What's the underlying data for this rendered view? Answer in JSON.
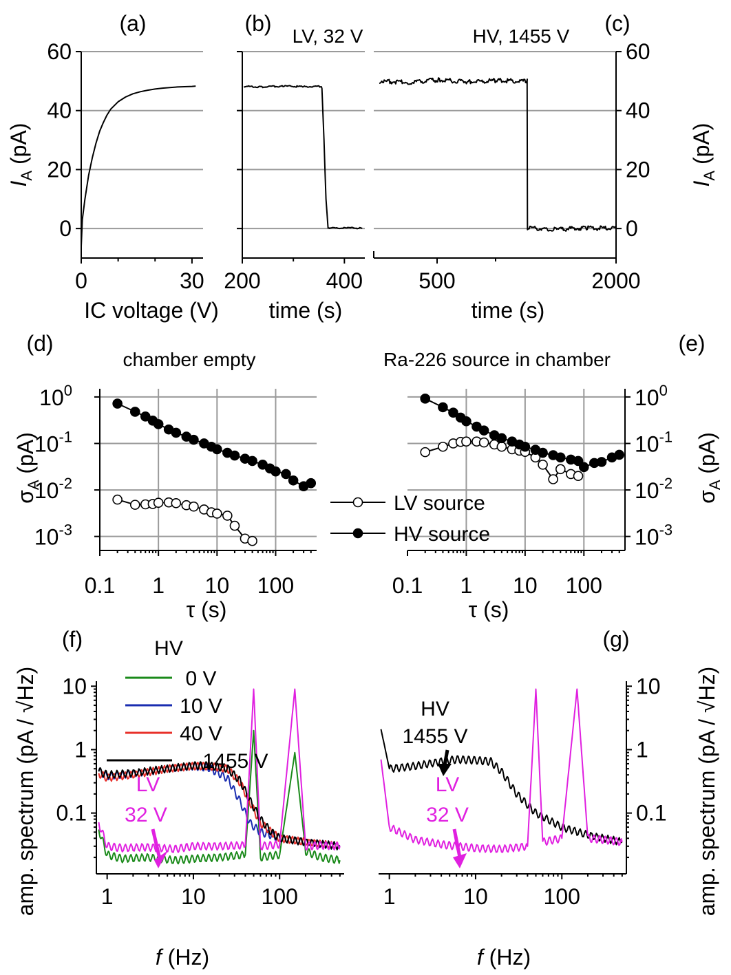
{
  "panels": [
    {
      "id": "a",
      "letter": "(a)",
      "annotation": "",
      "type": "line",
      "xlabel": "IC voltage (V)",
      "ylabel_main": "I",
      "ylabel_sub": "A",
      "ylabel_rest": " (pA)",
      "xticks": [
        "0",
        "30"
      ],
      "yticks": [
        "60",
        "40",
        "20",
        "0"
      ],
      "xlim": [
        0,
        33
      ],
      "ylim": [
        -10,
        60
      ],
      "series": [
        {
          "color": "#000000",
          "x": [
            0,
            0.3,
            1,
            2,
            3,
            4,
            5,
            6,
            7,
            8,
            10,
            12,
            14,
            16,
            18,
            20,
            22,
            24,
            26,
            28,
            30,
            31
          ],
          "y": [
            -6,
            3,
            10,
            18,
            24,
            29,
            33,
            36,
            38.5,
            40.5,
            43,
            44.6,
            45.7,
            46.4,
            46.9,
            47.3,
            47.6,
            47.8,
            48.0,
            48.1,
            48.2,
            48.3
          ]
        }
      ]
    },
    {
      "id": "b",
      "letter": "(b)",
      "annotation": "LV, 32 V",
      "type": "line",
      "xlabel": "time (s)",
      "xticks": [
        "200",
        "400"
      ],
      "yticks": [],
      "xlim": [
        200,
        440
      ],
      "ylim": [
        -10,
        60
      ],
      "series": [
        {
          "color": "#000000",
          "x": [
            203,
            240,
            280,
            320,
            355,
            356,
            360,
            364,
            368,
            380,
            410,
            435
          ],
          "y": [
            48.2,
            48.0,
            48.3,
            48.1,
            48.2,
            47.5,
            30,
            10,
            0.3,
            0.1,
            0.2,
            0.1
          ]
        }
      ]
    },
    {
      "id": "c",
      "letter": "(c)",
      "annotation": "HV, 1455 V",
      "type": "line",
      "xlabel": "time (s)",
      "ylabel_main": "I",
      "ylabel_sub": "A",
      "ylabel_rest": " (pA)",
      "xticks": [
        "500",
        "2000"
      ],
      "yticks": [
        "60",
        "40",
        "20",
        "0"
      ],
      "xlim": [
        0,
        2000
      ],
      "ylim": [
        -10,
        60
      ],
      "series": [
        {
          "color": "#000000",
          "x": [
            0,
            250,
            500,
            750,
            1000,
            1250,
            1249,
            1252,
            1500,
            1750,
            2000
          ],
          "y": [
            50,
            49.6,
            50.4,
            49.8,
            50.2,
            49.9,
            49.9,
            0.3,
            -0.3,
            0.2,
            0.0
          ]
        }
      ]
    },
    {
      "id": "d",
      "letter": "(d)",
      "annotation": "chamber empty",
      "type": "scatter",
      "xlabel": "τ (s)",
      "ylabel_main": "σ",
      "ylabel_sub": "A",
      "ylabel_rest": " (pA)",
      "xticks": [
        "0.1",
        "1",
        "10",
        "100"
      ],
      "yticks": [
        {
          "base": "10",
          "exp": "0"
        },
        {
          "base": "10",
          "exp": "-1"
        },
        {
          "base": "10",
          "exp": "-2"
        },
        {
          "base": "10",
          "exp": "-3"
        }
      ],
      "xlim": [
        0.1,
        500
      ],
      "ylim": [
        0.0005,
        1.5
      ],
      "xscale": "log",
      "yscale": "log",
      "series": [
        {
          "name": "LV source",
          "marker": "open",
          "x": [
            0.2,
            0.4,
            0.6,
            0.8,
            1,
            1.5,
            2,
            3,
            4,
            6,
            8,
            10,
            15,
            20,
            30,
            40
          ],
          "y": [
            0.0062,
            0.0048,
            0.0049,
            0.005,
            0.0053,
            0.0054,
            0.0052,
            0.0047,
            0.0044,
            0.0038,
            0.0033,
            0.0031,
            0.0028,
            0.0017,
            0.0009,
            0.0008
          ]
        },
        {
          "name": "HV source",
          "marker": "filled",
          "x": [
            0.2,
            0.4,
            0.6,
            0.8,
            1,
            1.5,
            2,
            3,
            4,
            6,
            8,
            10,
            15,
            20,
            30,
            40,
            60,
            80,
            100,
            150,
            200,
            300,
            400
          ],
          "y": [
            0.72,
            0.48,
            0.38,
            0.31,
            0.26,
            0.2,
            0.17,
            0.14,
            0.12,
            0.1,
            0.085,
            0.075,
            0.063,
            0.055,
            0.047,
            0.042,
            0.035,
            0.029,
            0.025,
            0.022,
            0.016,
            0.012,
            0.014
          ]
        }
      ]
    },
    {
      "id": "e",
      "letter": "(e)",
      "annotation": "Ra-226 source in chamber",
      "type": "scatter",
      "xlabel": "τ (s)",
      "ylabel_main": "σ",
      "ylabel_sub": "A",
      "ylabel_rest": " (pA)",
      "xticks": [
        "0.1",
        "1",
        "10",
        "100"
      ],
      "yticks": [
        {
          "base": "10",
          "exp": "0"
        },
        {
          "base": "10",
          "exp": "-1"
        },
        {
          "base": "10",
          "exp": "-2"
        },
        {
          "base": "10",
          "exp": "-3"
        }
      ],
      "xlim": [
        0.1,
        500
      ],
      "ylim": [
        0.0005,
        1.5
      ],
      "xscale": "log",
      "yscale": "log",
      "series": [
        {
          "name": "LV source",
          "marker": "open",
          "x": [
            0.2,
            0.4,
            0.6,
            0.8,
            1,
            1.5,
            2,
            3,
            4,
            6,
            8,
            10,
            15,
            20,
            30,
            40,
            60,
            80
          ],
          "y": [
            0.065,
            0.085,
            0.1,
            0.108,
            0.11,
            0.11,
            0.105,
            0.095,
            0.085,
            0.075,
            0.07,
            0.066,
            0.05,
            0.035,
            0.017,
            0.028,
            0.022,
            0.02
          ]
        },
        {
          "name": "HV source",
          "marker": "filled",
          "x": [
            0.2,
            0.4,
            0.6,
            0.8,
            1,
            1.5,
            2,
            3,
            4,
            6,
            8,
            10,
            15,
            20,
            30,
            40,
            60,
            80,
            100,
            150,
            200,
            300,
            400
          ],
          "y": [
            0.92,
            0.6,
            0.46,
            0.36,
            0.3,
            0.23,
            0.19,
            0.15,
            0.13,
            0.11,
            0.095,
            0.085,
            0.073,
            0.063,
            0.056,
            0.05,
            0.045,
            0.042,
            0.031,
            0.038,
            0.04,
            0.05,
            0.057
          ]
        }
      ]
    },
    {
      "id": "f",
      "letter": "(f)",
      "annotation": "",
      "type": "line",
      "xlabel_main": "f",
      "xlabel_rest": " (Hz)",
      "ylabel_main": "amp. spectrum (pA / √Hz)",
      "xticks": [
        "1",
        "10",
        "100"
      ],
      "yticks": [
        "10",
        "1",
        "0.1"
      ],
      "xlim": [
        0.75,
        560
      ],
      "ylim": [
        0.011,
        12
      ],
      "xscale": "log",
      "yscale": "log",
      "series": [
        {
          "name": "0 V",
          "color": "#1a8a1a",
          "x": [
            0.8,
            1,
            1.5,
            3,
            6,
            10,
            20,
            40,
            50,
            60,
            100,
            150,
            200,
            300,
            500
          ],
          "y": [
            0.055,
            0.022,
            0.019,
            0.02,
            0.018,
            0.019,
            0.02,
            0.022,
            2,
            0.02,
            0.022,
            0.9,
            0.025,
            0.02,
            0.018
          ]
        },
        {
          "name": "10 V",
          "color": "#1a2db0",
          "x": [
            0.8,
            1,
            2,
            5,
            10,
            15,
            25,
            35,
            45,
            60,
            80,
            100,
            200,
            500
          ],
          "y": [
            0.46,
            0.38,
            0.42,
            0.5,
            0.55,
            0.52,
            0.35,
            0.15,
            0.07,
            0.05,
            0.045,
            0.04,
            0.035,
            0.03
          ]
        },
        {
          "name": "40 V",
          "color": "#e8302a",
          "x": [
            0.8,
            1,
            2,
            5,
            10,
            15,
            25,
            35,
            45,
            60,
            80,
            100,
            200,
            500
          ],
          "y": [
            0.42,
            0.36,
            0.4,
            0.5,
            0.55,
            0.55,
            0.5,
            0.3,
            0.15,
            0.07,
            0.05,
            0.04,
            0.035,
            0.03
          ]
        },
        {
          "name": "1455 V",
          "color": "#000000",
          "x": [
            0.8,
            1,
            2,
            5,
            10,
            15,
            25,
            35,
            45,
            60,
            80,
            100,
            200,
            500
          ],
          "y": [
            0.46,
            0.4,
            0.43,
            0.5,
            0.56,
            0.56,
            0.5,
            0.32,
            0.16,
            0.08,
            0.05,
            0.04,
            0.035,
            0.03
          ]
        },
        {
          "name": "32 V",
          "color": "#e020e0",
          "x": [
            0.8,
            1,
            1.5,
            3,
            6,
            10,
            20,
            40,
            50,
            60,
            100,
            150,
            200,
            300,
            500
          ],
          "y": [
            0.07,
            0.03,
            0.028,
            0.029,
            0.027,
            0.03,
            0.03,
            0.031,
            9,
            0.03,
            0.032,
            9,
            0.03,
            0.031,
            0.03
          ]
        }
      ],
      "legend_title": "HV",
      "lv_label": [
        "LV",
        "32 V"
      ]
    },
    {
      "id": "g",
      "letter": "(g)",
      "annotation": "",
      "type": "line",
      "xlabel_main": "f",
      "xlabel_rest": " (Hz)",
      "ylabel_main": "amp. spectrum (pA / √Hz)",
      "xticks": [
        "1",
        "10",
        "100"
      ],
      "yticks": [
        "10",
        "1",
        "0.1"
      ],
      "xlim": [
        0.75,
        560
      ],
      "ylim": [
        0.011,
        12
      ],
      "xscale": "log",
      "yscale": "log",
      "series": [
        {
          "name": "HV 1455 V",
          "color": "#000000",
          "x": [
            0.8,
            1,
            2,
            4,
            6,
            10,
            15,
            20,
            30,
            50,
            100,
            200,
            500
          ],
          "y": [
            2.1,
            0.5,
            0.55,
            0.65,
            0.7,
            0.68,
            0.65,
            0.45,
            0.2,
            0.1,
            0.06,
            0.045,
            0.035
          ]
        },
        {
          "name": "LV 32 V",
          "color": "#e020e0",
          "x": [
            0.8,
            1,
            2,
            4,
            6,
            10,
            20,
            40,
            50,
            60,
            100,
            150,
            200,
            300,
            500
          ],
          "y": [
            0.7,
            0.06,
            0.038,
            0.032,
            0.03,
            0.028,
            0.027,
            0.03,
            9,
            0.035,
            0.04,
            9,
            0.04,
            0.038,
            0.035
          ]
        }
      ],
      "hv_label": [
        "HV",
        "1455 V"
      ],
      "lv_label": [
        "LV",
        "32 V"
      ]
    }
  ],
  "legend_de": [
    {
      "name": "LV source",
      "marker": "open"
    },
    {
      "name": "HV source",
      "marker": "filled"
    }
  ],
  "legend_f": [
    {
      "name": "0 V",
      "color": "#1a8a1a"
    },
    {
      "name": "10 V",
      "color": "#1a2db0"
    },
    {
      "name": "40 V",
      "color": "#e8302a"
    },
    {
      "name": "1455 V",
      "color": "#000000"
    }
  ]
}
